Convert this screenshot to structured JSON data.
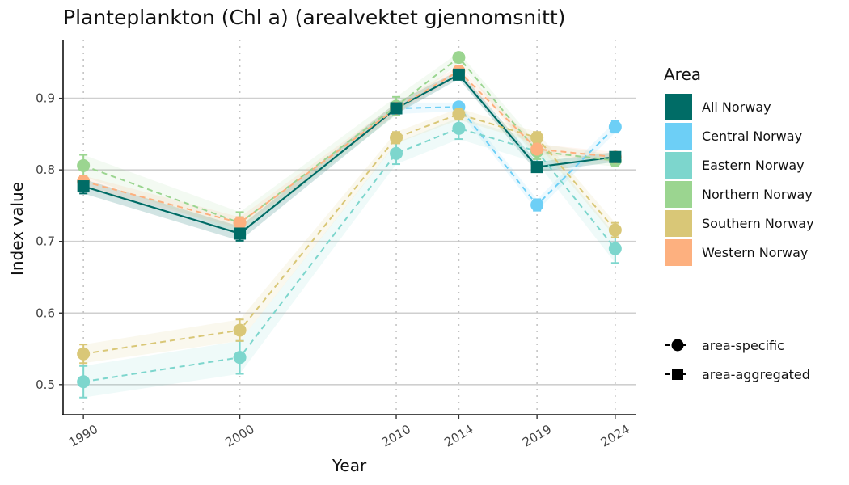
{
  "chart_data": {
    "type": "line",
    "title": "Planteplankton (Chl a) (arealvektet gjennomsnitt)",
    "xlabel": "Year",
    "ylabel": "Index value",
    "x": [
      1990,
      2000,
      2010,
      2014,
      2019,
      2024
    ],
    "x_ticks": [
      "1990",
      "2000",
      "2010",
      "2014",
      "2019",
      "2024"
    ],
    "y_ticks": [
      "0.5",
      "0.6",
      "0.7",
      "0.8",
      "0.9"
    ],
    "y_tick_values": [
      0.5,
      0.6,
      0.7,
      0.8,
      0.9
    ],
    "ylim": [
      0.458,
      0.982
    ],
    "grid": "horizontal major; vertical dotted at data years",
    "legend_title": "Area",
    "legend_position": "right",
    "series": [
      {
        "name": "All Norway",
        "key": "all",
        "color": "#006C66",
        "marker": "square",
        "line": "solid",
        "values": [
          0.777,
          0.711,
          0.886,
          0.933,
          0.804,
          0.818
        ],
        "lower": [
          0.767,
          0.701,
          0.878,
          0.927,
          0.797,
          0.811
        ],
        "upper": [
          0.787,
          0.721,
          0.894,
          0.939,
          0.811,
          0.825
        ]
      },
      {
        "name": "Central Norway",
        "key": "central",
        "color": "#6DCFF6",
        "marker": "circle",
        "line": "dashed",
        "values": [
          null,
          null,
          0.886,
          0.888,
          0.751,
          0.86
        ],
        "lower": [
          null,
          null,
          0.878,
          0.882,
          0.743,
          0.852
        ],
        "upper": [
          null,
          null,
          0.894,
          0.894,
          0.759,
          0.868
        ]
      },
      {
        "name": "Eastern Norway",
        "key": "eastern",
        "color": "#7DD6CD",
        "marker": "circle",
        "line": "dashed",
        "values": [
          0.504,
          0.538,
          0.823,
          0.858,
          0.826,
          0.69
        ],
        "lower": [
          0.482,
          0.515,
          0.808,
          0.843,
          0.81,
          0.67
        ],
        "upper": [
          0.526,
          0.561,
          0.838,
          0.873,
          0.842,
          0.71
        ]
      },
      {
        "name": "Northern Norway",
        "key": "northern",
        "color": "#9BD590",
        "marker": "circle",
        "line": "dashed",
        "values": [
          0.806,
          0.726,
          0.889,
          0.957,
          0.826,
          0.813
        ],
        "lower": [
          0.791,
          0.711,
          0.876,
          0.95,
          0.815,
          0.805
        ],
        "upper": [
          0.821,
          0.741,
          0.902,
          0.964,
          0.837,
          0.821
        ]
      },
      {
        "name": "Southern Norway",
        "key": "southern",
        "color": "#D9C777",
        "marker": "circle",
        "line": "dashed",
        "values": [
          0.543,
          0.576,
          0.845,
          0.878,
          0.845,
          0.716
        ],
        "lower": [
          0.53,
          0.561,
          0.837,
          0.87,
          0.837,
          0.706
        ],
        "upper": [
          0.556,
          0.591,
          0.853,
          0.886,
          0.853,
          0.726
        ]
      },
      {
        "name": "Western Norway",
        "key": "western",
        "color": "#FDB07F",
        "marker": "circle",
        "line": "dashed",
        "values": [
          0.784,
          0.726,
          0.886,
          0.938,
          0.829,
          0.818
        ],
        "lower": [
          0.776,
          0.718,
          0.879,
          0.931,
          0.822,
          0.811
        ],
        "upper": [
          0.792,
          0.734,
          0.893,
          0.945,
          0.836,
          0.825
        ]
      }
    ],
    "shape_legend": [
      {
        "label": "area-specific",
        "marker": "circle"
      },
      {
        "label": "area-aggregated",
        "marker": "square"
      }
    ]
  }
}
